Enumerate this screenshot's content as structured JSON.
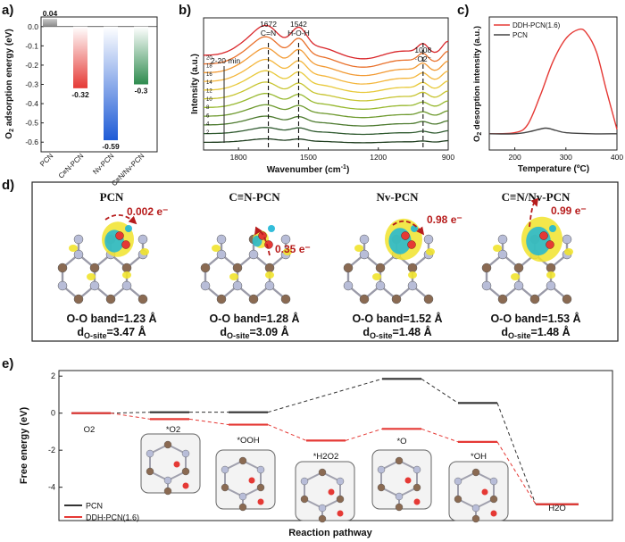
{
  "panel_labels": [
    "a)",
    "b)",
    "c)",
    "d)",
    "e)"
  ],
  "chart_data": [
    {
      "id": "a",
      "type": "bar",
      "ylabel": "O2 adsorption energy (eV)",
      "ylim": [
        -0.65,
        0.05
      ],
      "yticks": [
        0.0,
        -0.1,
        -0.2,
        -0.3,
        -0.4,
        -0.5,
        -0.6
      ],
      "ytick_labels": [
        "0.0",
        "-0.1",
        "-0.2",
        "-0.3",
        "-0.4",
        "-0.5",
        "-0.6"
      ],
      "categories": [
        "PCN",
        "C≡N-PCN",
        "Nv-PCN",
        "C≡N/Nv-PCN"
      ],
      "values": [
        0.04,
        -0.32,
        -0.59,
        -0.3
      ],
      "value_labels": [
        "0.04",
        "-0.32",
        "-0.59",
        "-0.3"
      ],
      "colors": [
        "#9a9a9a",
        "#e53935",
        "#1e5bd6",
        "#2e8b4e"
      ]
    },
    {
      "id": "b",
      "type": "line",
      "xlabel": "Wavenumber (cm-1)",
      "ylabel": "Intensity (a.u.)",
      "xlim": [
        1950,
        900
      ],
      "xticks": [
        1800,
        1500,
        1200,
        900
      ],
      "series_count": 11,
      "time_labels": [
        "2",
        "4",
        "6",
        "8",
        "10",
        "12",
        "14",
        "16",
        "18",
        "20"
      ],
      "colors": [
        "#1f3d1f",
        "#2f5a2f",
        "#4c7a2e",
        "#6e9a2e",
        "#97b82e",
        "#c7c42f",
        "#e8c93a",
        "#f4b63c",
        "#f29a34",
        "#e9712c",
        "#d9262a"
      ],
      "markers": [
        {
          "x": 1672,
          "label": "1672",
          "sublabel": "C=N"
        },
        {
          "x": 1542,
          "label": "1542",
          "sublabel": "H-O-H"
        },
        {
          "x": 1008,
          "label": "1008",
          "sublabel": "·O2⁻"
        }
      ],
      "time_annotation": "2-20 min"
    },
    {
      "id": "c",
      "type": "line",
      "xlabel": "Temperature (ºC)",
      "ylabel": "O2 desorption intensity (a.u.)",
      "xlim": [
        150,
        400
      ],
      "xticks": [
        200,
        300,
        400
      ],
      "series": [
        {
          "name": "DDH-PCN(1.6)",
          "color": "#e53935",
          "x": [
            150,
            200,
            225,
            250,
            275,
            300,
            325,
            340,
            360,
            380,
            400
          ],
          "y": [
            0.08,
            0.09,
            0.16,
            0.42,
            0.72,
            0.92,
            1.0,
            0.97,
            0.8,
            0.45,
            0.12
          ]
        },
        {
          "name": "PCN",
          "color": "#444444",
          "x": [
            150,
            200,
            230,
            260,
            280,
            300,
            350,
            400
          ],
          "y": [
            0.08,
            0.08,
            0.1,
            0.13,
            0.11,
            0.09,
            0.08,
            0.08
          ]
        }
      ]
    },
    {
      "id": "e",
      "type": "line",
      "xlabel": "Reaction pathway",
      "ylabel": "Free energy (eV)",
      "ylim": [
        -5.8,
        2.3
      ],
      "yticks": [
        2,
        0,
        -2,
        -4
      ],
      "steps": [
        "O2",
        "*O2",
        "*OOH",
        "*H2O2",
        "*O",
        "*OH",
        "H2O"
      ],
      "series": [
        {
          "name": "PCN",
          "color": "#333333",
          "values": [
            0.0,
            0.05,
            0.05,
            null,
            1.85,
            0.55,
            -4.92
          ]
        },
        {
          "name": "DDH-PCN(1.6)",
          "color": "#e53935",
          "values": [
            0.0,
            -0.32,
            -0.62,
            -1.48,
            -0.85,
            -1.55,
            -4.92
          ]
        }
      ]
    }
  ],
  "panel_d": {
    "structures": [
      {
        "title": "PCN",
        "charge": "0.002 e⁻",
        "band": "O-O band=1.23 Å",
        "dist_prefix": "d",
        "dist_sub": "O-site",
        "dist_value": "=3.47 Å"
      },
      {
        "title": "C≡N-PCN",
        "charge": "0.35 e⁻",
        "band": "O-O band=1.28 Å",
        "dist_prefix": "d",
        "dist_sub": "O-site",
        "dist_value": "=3.09 Å"
      },
      {
        "title": "Nv-PCN",
        "charge": "0.98 e⁻",
        "band": "O-O band=1.52 Å",
        "dist_prefix": "d",
        "dist_sub": "O-site",
        "dist_value": "=1.48 Å"
      },
      {
        "title": "C≡N/Nv-PCN",
        "charge": "0.99 e⁻",
        "band": "O-O band=1.53 Å",
        "dist_prefix": "d",
        "dist_sub": "O-site",
        "dist_value": "=1.48 Å"
      }
    ]
  }
}
